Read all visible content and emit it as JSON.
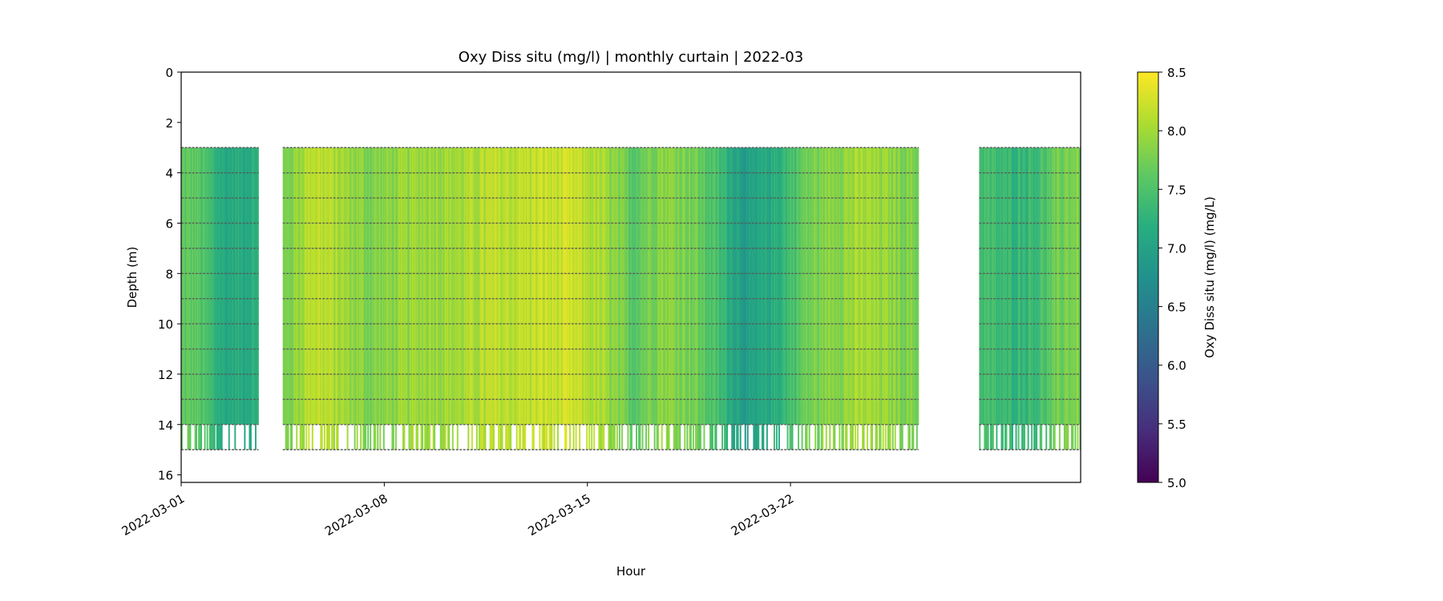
{
  "chart_data": {
    "type": "heatmap",
    "title": "Oxy Diss situ (mg/l) | monthly curtain | 2022-03",
    "xlabel": "Hour",
    "ylabel": "Depth (m)",
    "xlim": [
      "2022-03-01",
      "2022-04-01"
    ],
    "ylim": [
      16.3,
      0
    ],
    "y_inverted": true,
    "x_ticks": [
      "2022-03-01",
      "2022-03-08",
      "2022-03-15",
      "2022-03-22"
    ],
    "y_ticks": [
      0,
      2,
      4,
      6,
      8,
      10,
      12,
      14,
      16
    ],
    "colormap": "viridis",
    "colorbar": {
      "label": "Oxy Diss situ (mg/l) (mg/L)",
      "range": [
        5.0,
        8.5
      ],
      "ticks": [
        "5.0",
        "5.5",
        "6.0",
        "6.5",
        "7.0",
        "7.5",
        "8.0",
        "8.5"
      ]
    },
    "data_periods": [
      {
        "start": "2022-03-01",
        "end": "2022-03-03 16:00"
      },
      {
        "start": "2022-03-04 12:00",
        "end": "2022-03-26 10:00"
      },
      {
        "start": "2022-03-28 12:00",
        "end": "2022-04-01"
      }
    ],
    "gaps": [
      {
        "start": "2022-03-03 16:00",
        "end": "2022-03-04 12:00"
      },
      {
        "start": "2022-03-26 10:00",
        "end": "2022-03-28 12:00"
      }
    ],
    "sensor_depths_m": [
      3,
      4,
      5,
      6,
      7,
      8,
      9,
      10,
      11,
      12,
      13,
      14,
      15
    ],
    "sensor_line_color": "#555555",
    "approx_daily_mean_oxygen_mg_l": [
      {
        "date": "2022-03-01",
        "value": 7.6
      },
      {
        "date": "2022-03-02",
        "value": 7.1
      },
      {
        "date": "2022-03-03",
        "value": 7.2
      },
      {
        "date": "2022-03-05",
        "value": 8.2
      },
      {
        "date": "2022-03-06",
        "value": 8.0
      },
      {
        "date": "2022-03-07",
        "value": 7.8
      },
      {
        "date": "2022-03-08",
        "value": 7.9
      },
      {
        "date": "2022-03-09",
        "value": 8.0
      },
      {
        "date": "2022-03-10",
        "value": 8.0
      },
      {
        "date": "2022-03-11",
        "value": 8.1
      },
      {
        "date": "2022-03-12",
        "value": 8.15
      },
      {
        "date": "2022-03-13",
        "value": 8.2
      },
      {
        "date": "2022-03-14",
        "value": 8.2
      },
      {
        "date": "2022-03-15",
        "value": 8.0
      },
      {
        "date": "2022-03-16",
        "value": 7.6
      },
      {
        "date": "2022-03-17",
        "value": 7.9
      },
      {
        "date": "2022-03-18",
        "value": 7.8
      },
      {
        "date": "2022-03-19",
        "value": 7.4
      },
      {
        "date": "2022-03-20",
        "value": 6.9
      },
      {
        "date": "2022-03-21",
        "value": 7.2
      },
      {
        "date": "2022-03-22",
        "value": 7.7
      },
      {
        "date": "2022-03-23",
        "value": 7.9
      },
      {
        "date": "2022-03-24",
        "value": 8.0
      },
      {
        "date": "2022-03-25",
        "value": 7.9
      },
      {
        "date": "2022-03-29",
        "value": 7.3
      },
      {
        "date": "2022-03-30",
        "value": 7.4
      },
      {
        "date": "2022-03-31",
        "value": 7.8
      }
    ]
  }
}
